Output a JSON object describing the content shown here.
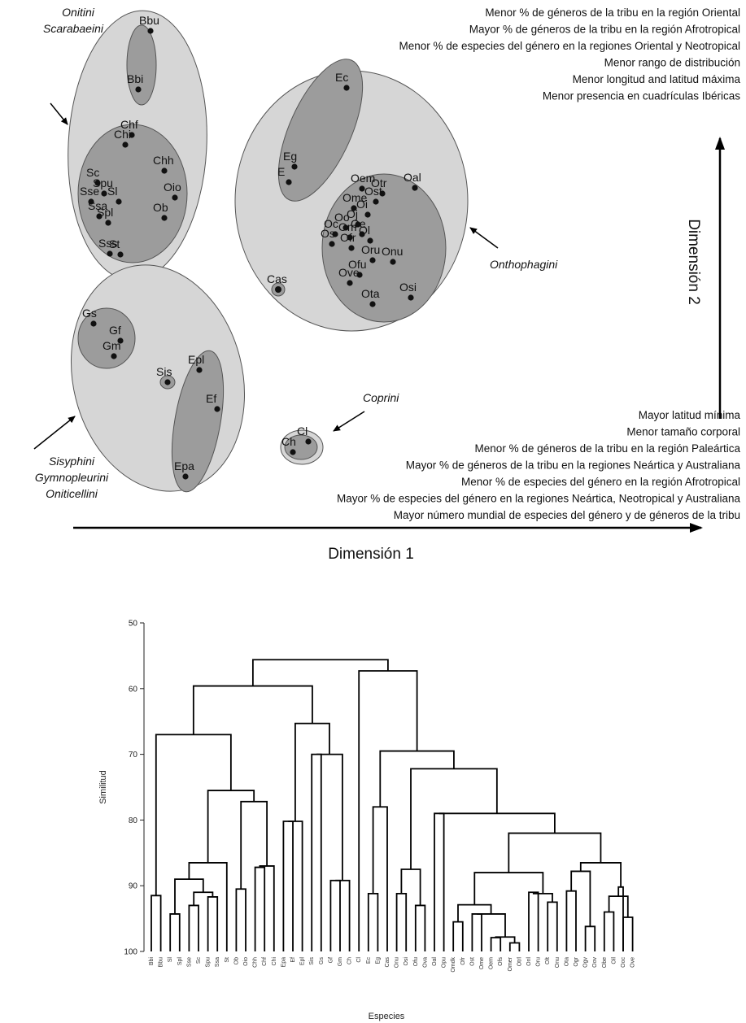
{
  "colors": {
    "outer_ellipse": "#d6d6d6",
    "inner_ellipse": "#9c9c9c",
    "stroke": "#555555",
    "point": "#111111",
    "line": "#000000"
  },
  "chart_data": [
    {
      "type": "scatter",
      "xlabel": "Dimensión 1",
      "ylabel": "Dimensión 2",
      "dim1_notes": [
        "Mayor latitud mínima",
        "Menor tamaño corporal",
        "Menor % de géneros de la tribu en la región Paleártica",
        "Mayor % de géneros de la tribu en la regiones Neártica y Australiana",
        "Menor % de especies del género en la región Afrotropical",
        "Mayor % de especies del género en la regiones Neártica, Neotropical y Australiana",
        "Mayor número mundial de especies del género y de géneros de la tribu"
      ],
      "dim2_notes": [
        "Menor % de géneros de la tribu en la región Oriental",
        "Mayor % de géneros de la tribu en la región Afrotropical",
        "Menor % de especies del género en la regiones Oriental y Neotropical",
        "Menor rango de distribución",
        "Menor longitud and latitud máxima",
        "Menor presencia en cuadrículas Ibéricas"
      ],
      "groups": [
        {
          "lines": [
            "Onitini",
            "Scarabaeini"
          ]
        },
        {
          "lines": [
            "Onthophagini"
          ]
        },
        {
          "lines": [
            "Sisyphini",
            "Gymnopleurini",
            "Oniticellini"
          ]
        },
        {
          "lines": [
            "Coprini"
          ]
        }
      ],
      "points": [
        {
          "label": "Bbu",
          "x": 185,
          "y": 38
        },
        {
          "label": "Bbi",
          "x": 170,
          "y": 110
        },
        {
          "label": "Chf",
          "x": 162,
          "y": 166
        },
        {
          "label": "Chi",
          "x": 154,
          "y": 178
        },
        {
          "label": "Chh",
          "x": 202,
          "y": 210
        },
        {
          "label": "Sc",
          "x": 120,
          "y": 225
        },
        {
          "label": "Oio",
          "x": 215,
          "y": 243
        },
        {
          "label": "Spu",
          "x": 128,
          "y": 238
        },
        {
          "label": "Sse",
          "x": 112,
          "y": 248
        },
        {
          "label": "Sl",
          "x": 146,
          "y": 248
        },
        {
          "label": "Ob",
          "x": 202,
          "y": 268
        },
        {
          "label": "Spl",
          "x": 133,
          "y": 274
        },
        {
          "label": "Ssa",
          "x": 122,
          "y": 266
        },
        {
          "label": "Sss",
          "x": 135,
          "y": 312
        },
        {
          "label": "St",
          "x": 148,
          "y": 313
        },
        {
          "label": "Ec",
          "x": 426,
          "y": 108
        },
        {
          "label": "Eg",
          "x": 362,
          "y": 205
        },
        {
          "label": "E",
          "x": 355,
          "y": 224
        },
        {
          "label": "Oal",
          "x": 510,
          "y": 231
        },
        {
          "label": "Oem",
          "x": 445,
          "y": 232
        },
        {
          "label": "Otr",
          "x": 470,
          "y": 238
        },
        {
          "label": "Ost",
          "x": 462,
          "y": 248
        },
        {
          "label": "Ome",
          "x": 435,
          "y": 256
        },
        {
          "label": "Oi",
          "x": 452,
          "y": 264
        },
        {
          "label": "Oj",
          "x": 440,
          "y": 276
        },
        {
          "label": "Oo",
          "x": 425,
          "y": 280
        },
        {
          "label": "Om",
          "x": 430,
          "y": 292
        },
        {
          "label": "Oc",
          "x": 412,
          "y": 288
        },
        {
          "label": "Oe",
          "x": 445,
          "y": 288
        },
        {
          "label": "Ol",
          "x": 455,
          "y": 296
        },
        {
          "label": "Os",
          "x": 408,
          "y": 300
        },
        {
          "label": "Onu",
          "x": 483,
          "y": 322
        },
        {
          "label": "Ofr",
          "x": 432,
          "y": 305
        },
        {
          "label": "Oru",
          "x": 458,
          "y": 320
        },
        {
          "label": "Ofu",
          "x": 442,
          "y": 338
        },
        {
          "label": "Ove",
          "x": 430,
          "y": 348
        },
        {
          "label": "Ota",
          "x": 458,
          "y": 374
        },
        {
          "label": "Osi",
          "x": 505,
          "y": 366
        },
        {
          "label": "Cas",
          "x": 342,
          "y": 356
        },
        {
          "label": "Gs",
          "x": 115,
          "y": 398
        },
        {
          "label": "Gf",
          "x": 148,
          "y": 419
        },
        {
          "label": "Gm",
          "x": 140,
          "y": 438
        },
        {
          "label": "Sis",
          "x": 206,
          "y": 470
        },
        {
          "label": "Epl",
          "x": 245,
          "y": 455
        },
        {
          "label": "Ef",
          "x": 267,
          "y": 503
        },
        {
          "label": "Epa",
          "x": 228,
          "y": 586
        },
        {
          "label": "Ch",
          "x": 360,
          "y": 556
        },
        {
          "label": "Cl",
          "x": 379,
          "y": 543
        }
      ]
    },
    {
      "type": "dendrogram",
      "xlabel": "Especies",
      "ylabel": "Similitud",
      "ylim": [
        100,
        50
      ],
      "yticks": [
        50,
        60,
        70,
        80,
        90,
        100
      ],
      "leaves": [
        "Bbi",
        "Bbu",
        "Sl",
        "Spl",
        "Sse",
        "Sc",
        "Spu",
        "Ssa",
        "St",
        "Ob",
        "Oio",
        "Chh",
        "Chf",
        "Chi",
        "Epa",
        "Ef",
        "Epl",
        "Sis",
        "Gs",
        "Gf",
        "Gm",
        "Ch",
        "Cl",
        "Ec",
        "Eg",
        "Cas",
        "Onu",
        "Osi",
        "Ofu",
        "Ova",
        "Oal",
        "Opu",
        "Omdk",
        "Ofr",
        "Ost",
        "Ome",
        "Oem",
        "Ofs",
        "Omer",
        "Otrl",
        "Onl",
        "Oru",
        "Olt",
        "Onu",
        "Ota",
        "Ogr",
        "Ogv",
        "Oov",
        "Obe",
        "Oil",
        "Ooc",
        "Ove"
      ],
      "merges": [
        {
          "a": "Bbi",
          "b": "Bbu",
          "height": 91.5
        },
        {
          "a": "Sl",
          "b": "Spl",
          "height": 89
        },
        {
          "a": "Sse",
          "b": "Sc",
          "height": 91.5
        },
        {
          "a": "Spu",
          "b": "Ssa",
          "height": 89.5
        },
        {
          "a": "St",
          "b": "Ob",
          "height": 87.5
        },
        {
          "a": "Oio",
          "b": "Chh",
          "height": 90.5
        },
        {
          "a": "Chf",
          "b": "Chi",
          "height": 87
        },
        {
          "a": "Epa",
          "b": "Ef",
          "height": 80
        },
        {
          "a": "Epl",
          "b": "Sis",
          "height": 89.5
        },
        {
          "a": "Gs",
          "b": "Gf",
          "height": 89
        },
        {
          "a": "Ch",
          "b": "Cl",
          "height": 92
        },
        {
          "a": "Ec",
          "b": "Eg",
          "height": 78
        },
        {
          "a": "Onthophagini",
          "b": "Cas",
          "height": 69.5
        },
        {
          "a": "Onitini+Scarabaeini",
          "b": "Sisyphini+Gymnopleurini+Oniticellini",
          "height": 59.5
        },
        {
          "a": "Coprini",
          "b": "Onthophagini",
          "height": 57
        },
        {
          "a": "root-left",
          "b": "root-right",
          "height": 55.5
        }
      ]
    }
  ]
}
